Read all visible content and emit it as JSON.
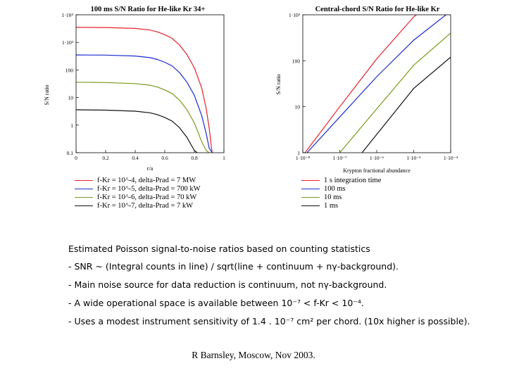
{
  "chart_data": [
    {
      "type": "line",
      "title": "100 ms S/N Ratio for He-like Kr 34+",
      "xlabel": "r/a",
      "ylabel": "S/N ratio",
      "xscale": "linear",
      "yscale": "log",
      "xlim": [
        0,
        1
      ],
      "ylim": [
        0.1,
        10000
      ],
      "xticks": [
        "0",
        "0.2",
        "0.4",
        "0.6",
        "0.8",
        "1"
      ],
      "yticks": [
        "0.1",
        "1",
        "10",
        "100",
        "1·10³",
        "1·10⁴"
      ],
      "series": [
        {
          "name": "f-Kr = 10^-4,  delta-Prad = 7 MW",
          "color": "#e8202a",
          "x": [
            0,
            0.2,
            0.4,
            0.5,
            0.55,
            0.6,
            0.65,
            0.7,
            0.75,
            0.8,
            0.85,
            0.88,
            0.9,
            0.92
          ],
          "y": [
            3500,
            3450,
            3200,
            2800,
            2400,
            1900,
            1400,
            800,
            360,
            120,
            22,
            4,
            0.8,
            0.1
          ]
        },
        {
          "name": "f-Kr = 10^-5,  delta-Prad = 700 kW",
          "color": "#1c2bd0",
          "x": [
            0,
            0.2,
            0.4,
            0.5,
            0.55,
            0.6,
            0.65,
            0.7,
            0.75,
            0.8,
            0.85,
            0.88,
            0.9,
            0.92
          ],
          "y": [
            350,
            345,
            320,
            280,
            240,
            190,
            140,
            80,
            36,
            12,
            2.2,
            0.5,
            0.15,
            0.1
          ]
        },
        {
          "name": "f-Kr = 10^-6,  delta-Prad = 70 kW",
          "color": "#7a9a1e",
          "x": [
            0,
            0.2,
            0.4,
            0.5,
            0.55,
            0.6,
            0.65,
            0.7,
            0.75,
            0.8,
            0.85,
            0.88,
            0.9
          ],
          "y": [
            36,
            35,
            32,
            28,
            24,
            19,
            14,
            8,
            3.6,
            1.2,
            0.25,
            0.12,
            0.1
          ]
        },
        {
          "name": "f-Kr = 10^-7,  delta-Prad = 7 kW",
          "color": "#111111",
          "x": [
            0,
            0.2,
            0.4,
            0.5,
            0.55,
            0.6,
            0.65,
            0.7,
            0.75,
            0.8,
            0.82
          ],
          "y": [
            3.6,
            3.5,
            3.2,
            2.8,
            2.4,
            1.9,
            1.4,
            0.8,
            0.36,
            0.12,
            0.1
          ]
        }
      ]
    },
    {
      "type": "line",
      "title": "Central-chord S/N Ratio for He-like Kr",
      "xlabel": "Krypton fractional abundance",
      "ylabel": "S/N ratio",
      "xscale": "log",
      "yscale": "log",
      "xlim": [
        1e-08,
        0.0001
      ],
      "ylim": [
        1,
        1000
      ],
      "xticks": [
        "1·10⁻⁸",
        "1·10⁻⁷",
        "1·10⁻⁶",
        "1·10⁻⁵",
        "1·10⁻⁴"
      ],
      "yticks": [
        "1",
        "10",
        "100",
        "1·10³"
      ],
      "series": [
        {
          "name": "1 s integration time",
          "color": "#e8202a",
          "x": [
            1.15e-08,
            1e-07,
            1e-06,
            1e-05,
            0.0001
          ],
          "y": [
            1,
            10,
            110,
            900,
            4000
          ]
        },
        {
          "name": "100 ms",
          "color": "#1c2bd0",
          "x": [
            1.3e-08,
            1e-07,
            1e-06,
            1e-05,
            0.0001
          ],
          "y": [
            1,
            6,
            45,
            280,
            1200
          ]
        },
        {
          "name": "10 ms",
          "color": "#7a9a1e",
          "x": [
            1e-07,
            1e-06,
            1e-05,
            0.0001
          ],
          "y": [
            1,
            9,
            80,
            400
          ]
        },
        {
          "name": "1 ms",
          "color": "#111111",
          "x": [
            4e-07,
            1e-06,
            1e-05,
            0.0001
          ],
          "y": [
            1,
            2.5,
            25,
            120
          ]
        }
      ]
    }
  ],
  "notes": {
    "heading": "Estimated Poisson signal-to-noise ratios based on counting statistics",
    "lines": [
      "- SNR ~ (Integral counts in line) / sqrt(line + continuum + nγ-background).",
      "- Main noise source for data reduction is continuum, not nγ-background.",
      "- A wide operational space is available between 10⁻⁷ < f-Kr < 10⁻⁴.",
      "- Uses a modest instrument sensitivity of 1.4 . 10⁻⁷ cm² per chord. (10x higher is possible)."
    ]
  },
  "footer": "R Barnsley, Moscow, Nov 2003."
}
